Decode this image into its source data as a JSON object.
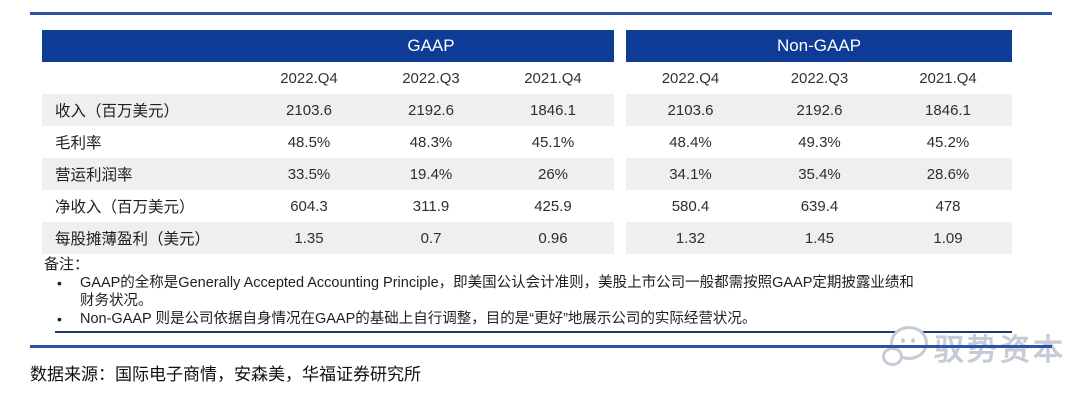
{
  "table": {
    "groups": [
      {
        "label": "GAAP"
      },
      {
        "label": "Non-GAAP"
      }
    ],
    "quarters": [
      "2022.Q4",
      "2022.Q3",
      "2021.Q4"
    ],
    "rows": [
      {
        "label": "收入（百万美元）",
        "gaap": [
          "2103.6",
          "2192.6",
          "1846.1"
        ],
        "non_gaap": [
          "2103.6",
          "2192.6",
          "1846.1"
        ]
      },
      {
        "label": "毛利率",
        "gaap": [
          "48.5%",
          "48.3%",
          "45.1%"
        ],
        "non_gaap": [
          "48.4%",
          "49.3%",
          "45.2%"
        ]
      },
      {
        "label": "营运利润率",
        "gaap": [
          "33.5%",
          "19.4%",
          "26%"
        ],
        "non_gaap": [
          "34.1%",
          "35.4%",
          "28.6%"
        ]
      },
      {
        "label": "净收入（百万美元）",
        "gaap": [
          "604.3",
          "311.9",
          "425.9"
        ],
        "non_gaap": [
          "580.4",
          "639.4",
          "478"
        ]
      },
      {
        "label": "每股摊薄盈利（美元）",
        "gaap": [
          "1.35",
          "0.7",
          "0.96"
        ],
        "non_gaap": [
          "1.32",
          "1.45",
          "1.09"
        ]
      }
    ]
  },
  "notes": {
    "title": "备注：",
    "items": [
      {
        "lines": [
          "GAAP的全称是Generally Accepted Accounting Principle，即美国公认会计准则，美股上市公司一般都需按照GAAP定期披露业绩和",
          "财务状况。"
        ],
        "underlined": false
      },
      {
        "lines": [
          "Non-GAAP 则是公司依据自身情况在GAAP的基础上自行调整，目的是“更好”地展示公司的实际经营状况。"
        ],
        "underlined": true
      }
    ]
  },
  "source": "数据来源：国际电子商情，安森美，华福证券研究所",
  "watermark": {
    "text": "驭势资本",
    "icon": "wechat-smiley-icon"
  },
  "colors": {
    "header_blue": "#0d3b96",
    "rule_blue": "#2a52a8",
    "row_shade": "#efefef",
    "underline_navy": "#1f3a70",
    "watermark_gray": "#c6ccd6"
  }
}
